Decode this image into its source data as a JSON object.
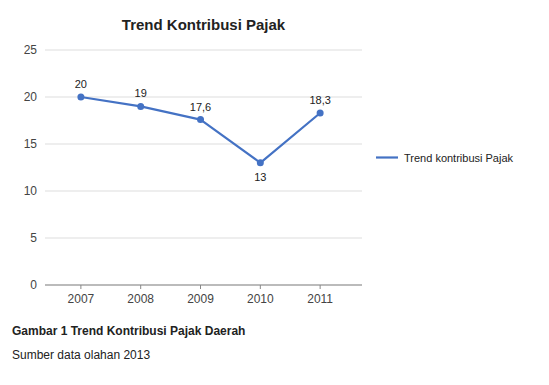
{
  "chart_data": {
    "type": "line",
    "title": "Trend Kontribusi Pajak",
    "x": [
      2007,
      2008,
      2009,
      2010,
      2011
    ],
    "series": [
      {
        "name": "Trend kontribusi Pajak",
        "color": "#4472C4",
        "marker": "circle",
        "values": [
          20,
          19,
          17.6,
          13,
          18.3
        ],
        "value_labels": [
          "20",
          "19",
          "17,6",
          "13",
          "18,3"
        ]
      }
    ],
    "xlim": [
      2006.4,
      2011.7
    ],
    "xticks": [
      2007,
      2008,
      2009,
      2010,
      2011
    ],
    "ylim": [
      0,
      25
    ],
    "yticks": [
      0,
      5,
      10,
      15,
      20,
      25
    ],
    "grid": true,
    "legend": "right",
    "data_labels": true,
    "annotations": [
      "Gambar 1 Trend Kontribusi Pajak Daerah",
      "Sumber data olahan 2013"
    ]
  }
}
